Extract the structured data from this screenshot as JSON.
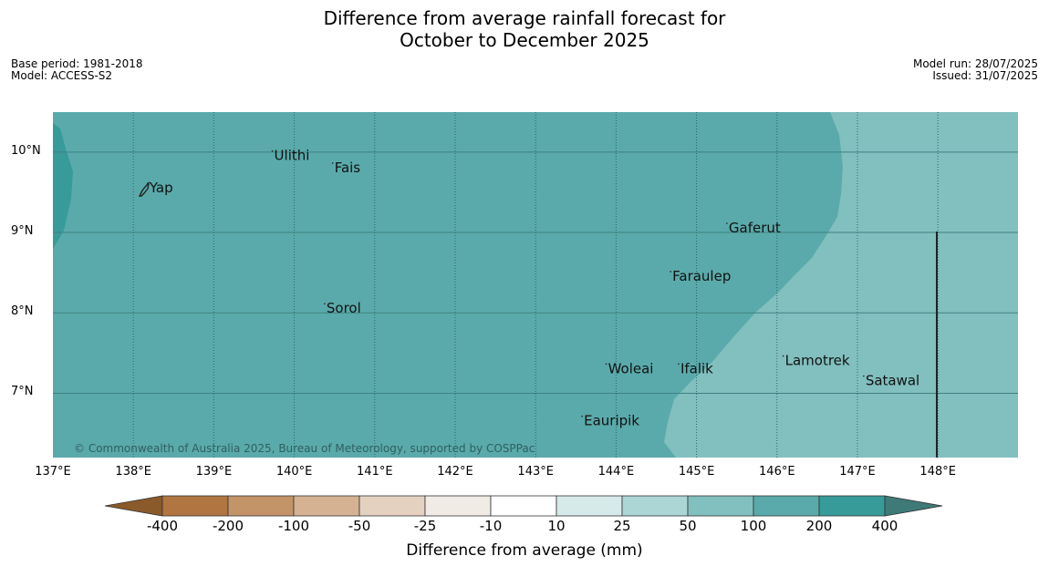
{
  "title": {
    "line1": "Difference from average rainfall forecast for",
    "line2": "October to December 2025"
  },
  "meta": {
    "base_period": "Base period: 1981-2018",
    "model": "Model: ACCESS-S2",
    "model_run": "Model run: 28/07/2025",
    "issued": "Issued: 31/07/2025"
  },
  "map": {
    "lon_range": [
      137,
      149
    ],
    "lat_range": [
      6.2,
      10.5
    ],
    "x_ticks": [
      "137°E",
      "138°E",
      "139°E",
      "140°E",
      "141°E",
      "142°E",
      "143°E",
      "144°E",
      "145°E",
      "146°E",
      "147°E",
      "148°E"
    ],
    "y_ticks": [
      "10°N",
      "9°N",
      "8°N",
      "7°N"
    ],
    "copyright": "© Commonwealth of Australia 2025, Bureau of Meteorology, supported by COSPPac",
    "places": [
      {
        "name": "Ulithi",
        "lon": 139.75,
        "lat": 9.9
      },
      {
        "name": "Fais",
        "lon": 140.5,
        "lat": 9.75
      },
      {
        "name": "Yap",
        "lon": 138.2,
        "lat": 9.5
      },
      {
        "name": "Gaferut",
        "lon": 145.4,
        "lat": 9.0
      },
      {
        "name": "Faraulep",
        "lon": 144.7,
        "lat": 8.4
      },
      {
        "name": "Sorol",
        "lon": 140.4,
        "lat": 8.0
      },
      {
        "name": "Lamotrek",
        "lon": 146.1,
        "lat": 7.35
      },
      {
        "name": "Woleai",
        "lon": 143.9,
        "lat": 7.25
      },
      {
        "name": "Ifalik",
        "lon": 144.8,
        "lat": 7.25
      },
      {
        "name": "Satawal",
        "lon": 147.1,
        "lat": 7.1
      },
      {
        "name": "Eauripik",
        "lon": 143.6,
        "lat": 6.6
      }
    ]
  },
  "colors": {
    "class_100_200": "#5aaaab",
    "class_50_100": "#82bfbf",
    "class_200_400": "#379b9a"
  },
  "legend": {
    "label": "Difference from average (mm)",
    "ticks": [
      "-400",
      "-200",
      "-100",
      "-50",
      "-25",
      "-10",
      "10",
      "25",
      "50",
      "100",
      "200",
      "400"
    ],
    "colors": [
      "#8a5a2b",
      "#b07540",
      "#c39468",
      "#d5b292",
      "#e4d1c0",
      "#f0ebe5",
      "#ffffff",
      "#d7eaea",
      "#acd5d5",
      "#82bfbf",
      "#5aaaab",
      "#379b9a",
      "#3e7a78"
    ]
  }
}
